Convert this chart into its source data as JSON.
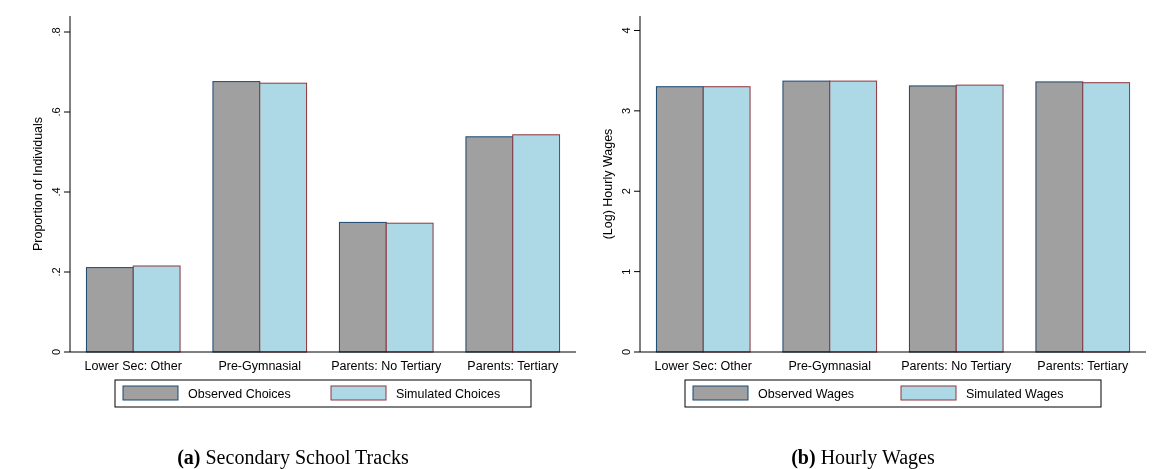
{
  "chart_data": [
    {
      "type": "bar",
      "title": "(a) Secondary School Tracks",
      "ylabel": "Proportion of Individuals",
      "categories": [
        "Lower Sec: Other",
        "Pre-Gymnasial",
        "Parents: No Tertiary",
        "Parents: Tertiary"
      ],
      "series": [
        {
          "name": "Observed Choices",
          "color": "#a0a0a0",
          "values": [
            0.211,
            0.676,
            0.324,
            0.538
          ]
        },
        {
          "name": "Simulated Choices",
          "color": "#add8e6",
          "values": [
            0.215,
            0.672,
            0.322,
            0.543
          ]
        }
      ],
      "ylim": [
        0,
        0.84
      ],
      "yticks": [
        0,
        {
          "value": 0.2,
          "label": ".2"
        },
        {
          "value": 0.4,
          "label": ".4"
        },
        {
          "value": 0.6,
          "label": ".6"
        },
        {
          "value": 0.8,
          "label": ".8"
        }
      ],
      "grid": false,
      "legend": "bottom"
    },
    {
      "type": "bar",
      "title": "(b) Hourly Wages",
      "ylabel": "(Log) Hourly Wages",
      "categories": [
        "Lower Sec: Other",
        "Pre-Gymnasial",
        "Parents: No Tertiary",
        "Parents: Tertiary"
      ],
      "series": [
        {
          "name": "Observed Wages",
          "color": "#a0a0a0",
          "values": [
            3.3,
            3.37,
            3.31,
            3.36
          ]
        },
        {
          "name": "Simulated Wages",
          "color": "#add8e6",
          "values": [
            3.3,
            3.37,
            3.32,
            3.35
          ]
        }
      ],
      "ylim": [
        0,
        4.18
      ],
      "yticks": [
        0,
        1,
        2,
        3,
        4
      ],
      "grid": false,
      "legend": "bottom"
    }
  ]
}
